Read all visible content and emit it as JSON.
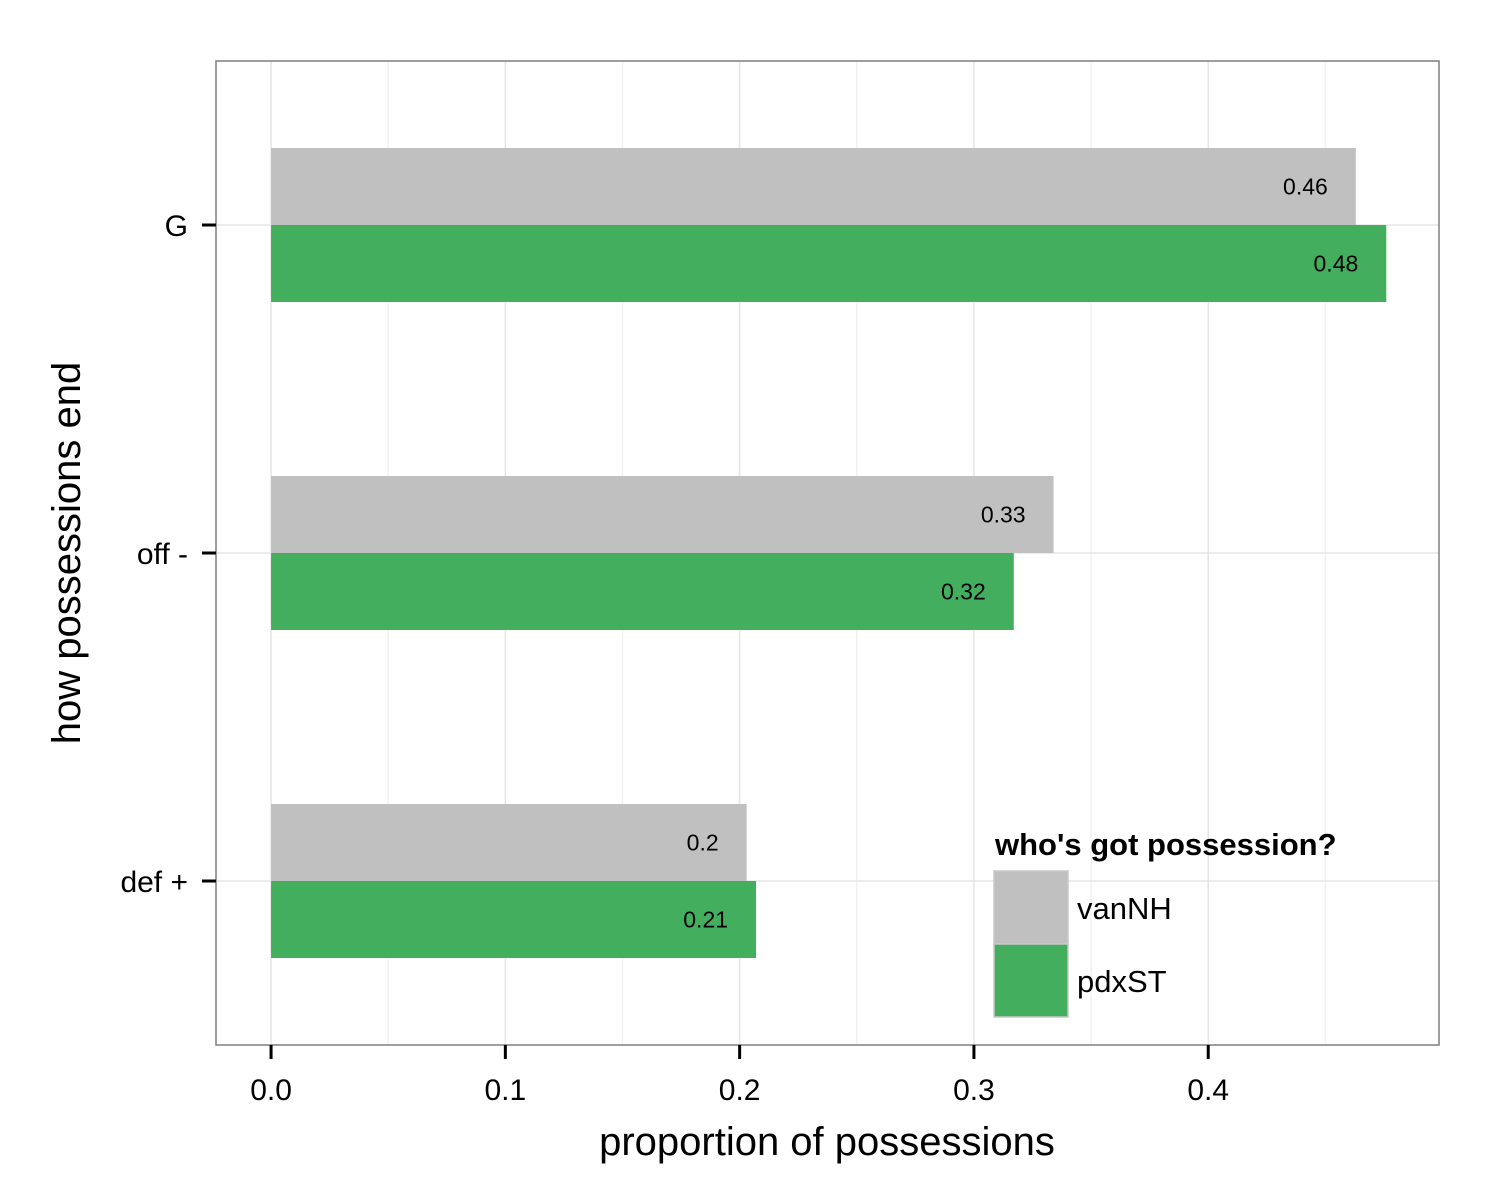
{
  "chart_data": {
    "type": "bar",
    "orientation": "horizontal",
    "categories": [
      "G",
      "off -",
      "def +"
    ],
    "series": [
      {
        "name": "vanNH",
        "values": [
          0.463,
          0.334,
          0.203
        ],
        "labels": [
          "0.46",
          "0.33",
          "0.2"
        ],
        "color": "#c0c0c0"
      },
      {
        "name": "pdxST",
        "values": [
          0.476,
          0.317,
          0.207
        ],
        "labels": [
          "0.48",
          "0.32",
          "0.21"
        ],
        "color": "#43ae5e"
      }
    ],
    "xlabel": "proportion of possessions",
    "ylabel": "how possessions end",
    "xlim": [
      -0.0235,
      0.4985
    ],
    "xticks": [
      0.0,
      0.1,
      0.2,
      0.3,
      0.4
    ],
    "xtick_labels": [
      "0.0",
      "0.1",
      "0.2",
      "0.3",
      "0.4"
    ],
    "grid": true,
    "legend": {
      "title": "who's got possession?",
      "placement": "bottom-right inside"
    }
  }
}
